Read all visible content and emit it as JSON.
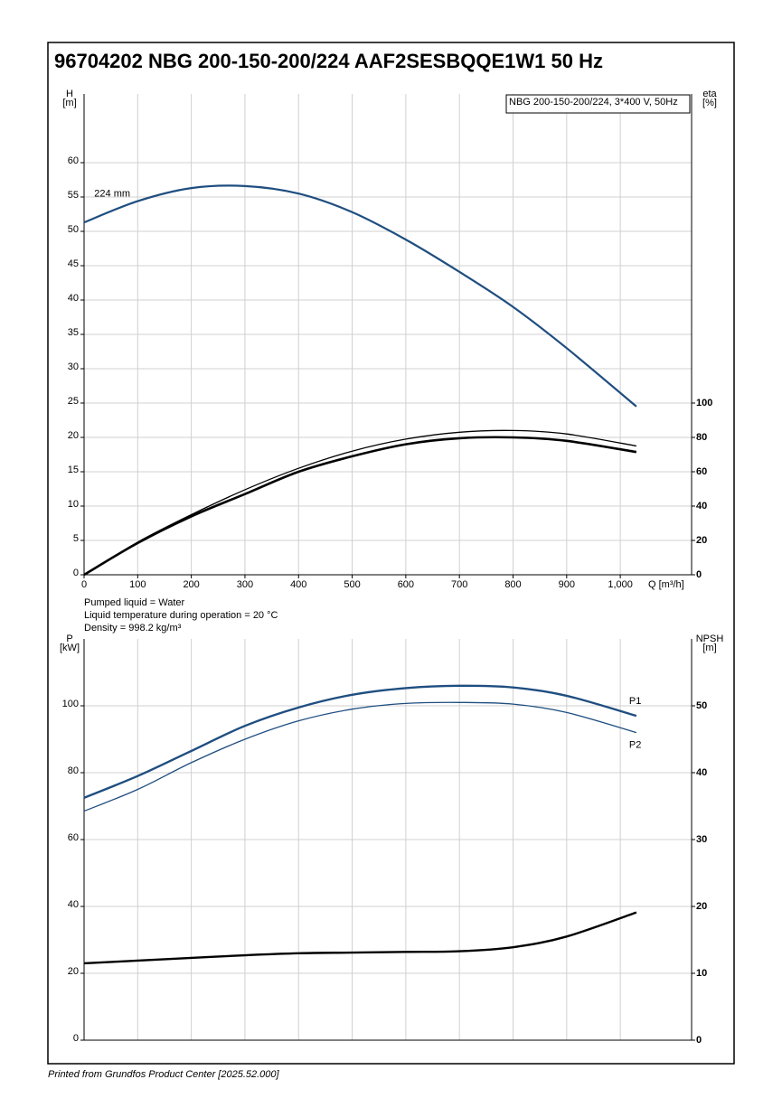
{
  "title": "96704202 NBG 200-150-200/224 AAF2SESBQQE1W1 50 Hz",
  "footer": "Printed from Grundfos Product Center [2025.52.000]",
  "liquid_info": [
    "Pumped liquid = Water",
    "Liquid temperature during operation = 20 °C",
    "Density = 998.2 kg/m³"
  ],
  "chart_data": [
    {
      "type": "line",
      "legend_box": "NBG 200-150-200/224, 3*400 V, 50Hz",
      "y_label": [
        "H",
        "[m]"
      ],
      "y2_label": [
        "eta",
        "[%]"
      ],
      "x_label": "Q [m³/h]",
      "x": [
        0,
        100,
        200,
        300,
        400,
        500,
        600,
        700,
        800,
        900,
        1030
      ],
      "xlim": [
        0,
        1133
      ],
      "xticks": [
        0,
        100,
        200,
        300,
        400,
        500,
        600,
        700,
        800,
        900,
        {
          "value": 1000,
          "label": "1,000"
        }
      ],
      "ylim": [
        0,
        70
      ],
      "yticks": [
        0,
        5,
        10,
        15,
        20,
        25,
        30,
        35,
        40,
        45,
        50,
        55,
        60
      ],
      "y2lim": [
        0,
        280
      ],
      "y2ticks": [
        0,
        20,
        40,
        60,
        80,
        100
      ],
      "grid": true,
      "series": [
        {
          "name": "224 mm",
          "color": "#1f4e80",
          "width": 2.2,
          "values": [
            51.3,
            54.4,
            56.3,
            56.6,
            55.5,
            52.8,
            48.8,
            44.1,
            39,
            33,
            24.5
          ]
        },
        {
          "color": "#000000",
          "width": 1.3,
          "axis": "y2",
          "values": [
            0,
            19,
            35,
            49.5,
            62,
            72,
            79,
            83,
            84,
            82,
            75
          ]
        },
        {
          "color": "#000000",
          "width": 2.6,
          "axis": "y2",
          "values": [
            0,
            18.5,
            34,
            47,
            60,
            69,
            76,
            79.5,
            80,
            78,
            71.5
          ]
        }
      ]
    },
    {
      "type": "line",
      "y_label": [
        "P",
        "[kW]"
      ],
      "y2_label": [
        "NPSH",
        "[m]"
      ],
      "x": [
        0,
        100,
        200,
        300,
        400,
        500,
        600,
        700,
        800,
        900,
        1030
      ],
      "ylim": [
        0,
        120
      ],
      "yticks": [
        0,
        20,
        40,
        60,
        80,
        100
      ],
      "y2lim": [
        0,
        60
      ],
      "y2ticks": [
        0,
        10,
        20,
        30,
        40,
        50
      ],
      "grid": true,
      "series": [
        {
          "name": "P1",
          "color": "#1f4e80",
          "width": 2.4,
          "values": [
            72.5,
            79,
            86.5,
            94,
            99.5,
            103.3,
            105.3,
            106,
            105.5,
            103,
            97
          ]
        },
        {
          "name": "P2",
          "color": "#1f4e80",
          "width": 1.3,
          "values": [
            68.5,
            75,
            83,
            90,
            95.5,
            99,
            100.7,
            101,
            100.5,
            98,
            92
          ]
        },
        {
          "color": "#000000",
          "width": 2.4,
          "axis": "y2",
          "values": [
            11.5,
            11.9,
            12.3,
            12.7,
            13,
            13.1,
            13.2,
            13.3,
            13.9,
            15.5,
            19.1
          ]
        }
      ]
    }
  ]
}
